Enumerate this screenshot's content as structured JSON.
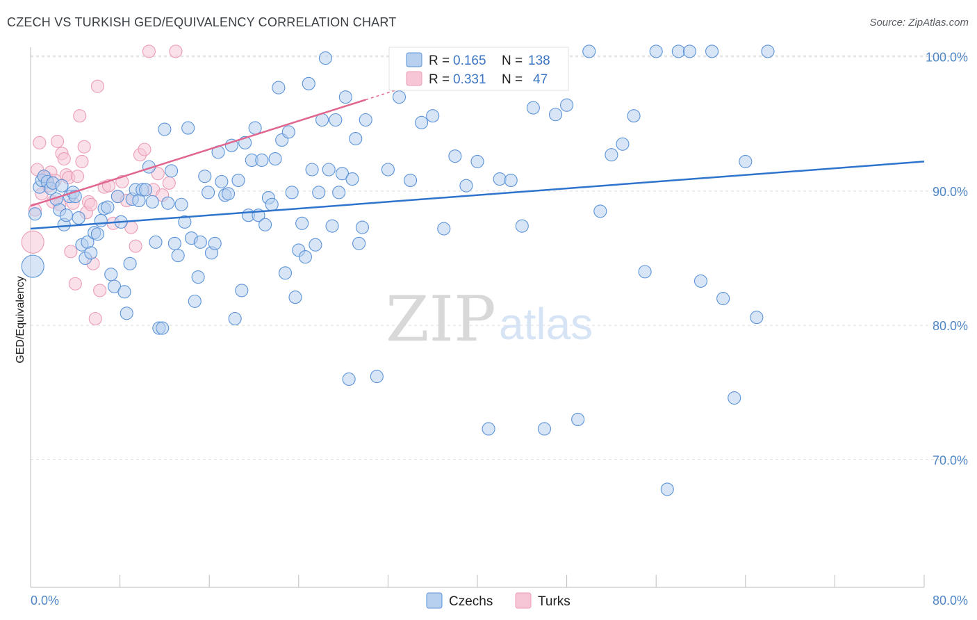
{
  "title": "CZECH VS TURKISH GED/EQUIVALENCY CORRELATION CHART",
  "source": "Source: ZipAtlas.com",
  "watermark": {
    "zip": "ZIP",
    "atlas": "atlas"
  },
  "colors": {
    "czech": "#5b93d8",
    "czech_fill": "#b7d0ef",
    "czech_line": "#2f74cc",
    "turk": "#ec9cb5",
    "turk_fill": "#f6c6d6",
    "turk_line": "#e0668f",
    "tick": "#4f86c6",
    "grid": "#dcdcdc"
  },
  "legend_top": {
    "czech": {
      "r_label": "R = ",
      "r_value": "0.165",
      "n_label": "N = ",
      "n_value": "138"
    },
    "turk": {
      "r_label": "R = ",
      "r_value": "0.331",
      "n_label": "N = ",
      "n_value": "47"
    }
  },
  "legend_bottom": {
    "czech": "Czechs",
    "turk": "Turks"
  },
  "chart_data": {
    "type": "scatter",
    "title": "CZECH VS TURKISH GED/EQUIVALENCY CORRELATION CHART",
    "xlabel": "",
    "ylabel": "GED/Equivalency",
    "xlim": [
      0,
      80
    ],
    "ylim": [
      60.5,
      100.5
    ],
    "x_tick_labels": [
      {
        "value": 0,
        "label": "0.0%"
      },
      {
        "value": 80,
        "label": "80.0%"
      }
    ],
    "y_tick_labels": [
      {
        "value": 100,
        "label": "100.0%"
      },
      {
        "value": 90,
        "label": "90.0%"
      },
      {
        "value": 80,
        "label": "80.0%"
      },
      {
        "value": 70,
        "label": "70.0%"
      }
    ],
    "grid": "horizontal dashed",
    "legend_placement": "top-center and bottom-center",
    "series": [
      {
        "name": "Czechs",
        "r": 0.165,
        "n": 138,
        "trend": {
          "x": [
            0,
            80
          ],
          "y": [
            87.2,
            92.2
          ]
        },
        "points": [
          [
            0.2,
            84.4
          ],
          [
            0.4,
            88.3
          ],
          [
            0.8,
            90.3
          ],
          [
            1.0,
            90.8
          ],
          [
            1.2,
            91.1
          ],
          [
            1.5,
            90.7
          ],
          [
            1.8,
            90.2
          ],
          [
            2.0,
            90.6
          ],
          [
            2.3,
            89.4
          ],
          [
            2.6,
            88.6
          ],
          [
            2.8,
            90.4
          ],
          [
            3.0,
            87.5
          ],
          [
            3.2,
            88.2
          ],
          [
            3.5,
            89.6
          ],
          [
            3.8,
            89.9
          ],
          [
            4.0,
            89.6
          ],
          [
            4.3,
            88.0
          ],
          [
            4.6,
            86.0
          ],
          [
            4.9,
            85.0
          ],
          [
            5.1,
            86.2
          ],
          [
            5.4,
            85.4
          ],
          [
            5.7,
            86.9
          ],
          [
            6.0,
            86.8
          ],
          [
            6.3,
            87.8
          ],
          [
            6.6,
            88.7
          ],
          [
            6.9,
            88.8
          ],
          [
            7.2,
            83.8
          ],
          [
            7.5,
            82.9
          ],
          [
            7.8,
            89.6
          ],
          [
            8.1,
            87.7
          ],
          [
            8.4,
            82.5
          ],
          [
            8.6,
            80.9
          ],
          [
            8.9,
            84.6
          ],
          [
            9.1,
            89.4
          ],
          [
            9.4,
            90.1
          ],
          [
            9.7,
            89.3
          ],
          [
            10.0,
            90.1
          ],
          [
            10.3,
            90.1
          ],
          [
            10.6,
            91.8
          ],
          [
            10.9,
            89.2
          ],
          [
            11.2,
            86.2
          ],
          [
            11.5,
            79.8
          ],
          [
            11.8,
            79.8
          ],
          [
            12.0,
            94.6
          ],
          [
            12.3,
            89.1
          ],
          [
            12.6,
            91.5
          ],
          [
            12.9,
            86.1
          ],
          [
            13.2,
            85.2
          ],
          [
            13.5,
            89.0
          ],
          [
            13.8,
            87.7
          ],
          [
            14.1,
            94.7
          ],
          [
            14.4,
            86.5
          ],
          [
            14.7,
            81.8
          ],
          [
            15.0,
            83.6
          ],
          [
            15.2,
            86.2
          ],
          [
            15.6,
            91.1
          ],
          [
            15.9,
            89.9
          ],
          [
            16.2,
            85.4
          ],
          [
            16.5,
            86.1
          ],
          [
            16.8,
            92.9
          ],
          [
            17.1,
            90.7
          ],
          [
            17.4,
            89.7
          ],
          [
            17.7,
            89.8
          ],
          [
            18.0,
            93.4
          ],
          [
            18.3,
            80.5
          ],
          [
            18.6,
            90.8
          ],
          [
            18.9,
            82.6
          ],
          [
            19.2,
            93.6
          ],
          [
            19.5,
            88.2
          ],
          [
            19.8,
            92.3
          ],
          [
            20.1,
            94.7
          ],
          [
            20.4,
            88.2
          ],
          [
            20.7,
            92.3
          ],
          [
            21.0,
            87.5
          ],
          [
            21.3,
            89.5
          ],
          [
            21.6,
            89.0
          ],
          [
            21.9,
            92.4
          ],
          [
            22.2,
            97.7
          ],
          [
            22.5,
            93.8
          ],
          [
            22.8,
            83.9
          ],
          [
            23.1,
            94.4
          ],
          [
            23.4,
            89.9
          ],
          [
            23.7,
            82.1
          ],
          [
            24.0,
            85.6
          ],
          [
            24.3,
            87.6
          ],
          [
            24.6,
            85.1
          ],
          [
            24.9,
            98.0
          ],
          [
            25.2,
            91.6
          ],
          [
            25.5,
            86.0
          ],
          [
            25.8,
            89.9
          ],
          [
            26.1,
            95.3
          ],
          [
            26.4,
            99.9
          ],
          [
            26.7,
            91.6
          ],
          [
            27.0,
            87.4
          ],
          [
            27.3,
            95.3
          ],
          [
            27.6,
            89.9
          ],
          [
            27.9,
            91.3
          ],
          [
            28.2,
            97.0
          ],
          [
            28.5,
            76.0
          ],
          [
            28.8,
            90.9
          ],
          [
            29.1,
            93.9
          ],
          [
            29.4,
            86.1
          ],
          [
            29.7,
            87.3
          ],
          [
            30.0,
            95.3
          ],
          [
            31.0,
            76.2
          ],
          [
            32.0,
            91.6
          ],
          [
            33.0,
            97.0
          ],
          [
            34.0,
            90.8
          ],
          [
            35.0,
            95.1
          ],
          [
            36.0,
            95.6
          ],
          [
            37.0,
            87.2
          ],
          [
            38.0,
            92.6
          ],
          [
            39.0,
            90.4
          ],
          [
            40.0,
            92.2
          ],
          [
            41.0,
            72.3
          ],
          [
            42.0,
            90.9
          ],
          [
            43.0,
            90.8
          ],
          [
            44.0,
            87.4
          ],
          [
            45.0,
            96.2
          ],
          [
            46.0,
            72.3
          ],
          [
            47.0,
            95.7
          ],
          [
            48.0,
            96.4
          ],
          [
            49.0,
            73.0
          ],
          [
            50.0,
            100.4
          ],
          [
            51.0,
            88.5
          ],
          [
            52.0,
            92.7
          ],
          [
            53.0,
            93.5
          ],
          [
            54.0,
            95.6
          ],
          [
            55.0,
            84.0
          ],
          [
            56.0,
            100.4
          ],
          [
            57.0,
            67.8
          ],
          [
            58.0,
            100.4
          ],
          [
            59.0,
            100.4
          ],
          [
            60.0,
            83.3
          ],
          [
            61.0,
            100.4
          ],
          [
            62.0,
            82.0
          ],
          [
            63.0,
            74.6
          ],
          [
            64.0,
            92.2
          ],
          [
            65.0,
            80.6
          ],
          [
            66.0,
            100.4
          ]
        ]
      },
      {
        "name": "Turks",
        "r": 0.331,
        "n": 47,
        "trend": {
          "x": [
            0,
            30
          ],
          "y": [
            88.9,
            96.8
          ]
        },
        "points": [
          [
            0.2,
            86.2
          ],
          [
            0.4,
            88.6
          ],
          [
            0.6,
            91.6
          ],
          [
            0.8,
            93.6
          ],
          [
            1.0,
            89.8
          ],
          [
            1.2,
            91.1
          ],
          [
            1.4,
            91.0
          ],
          [
            1.6,
            90.4
          ],
          [
            1.8,
            91.4
          ],
          [
            2.0,
            89.2
          ],
          [
            2.2,
            90.8
          ],
          [
            2.4,
            93.7
          ],
          [
            2.6,
            89.0
          ],
          [
            2.8,
            92.8
          ],
          [
            3.0,
            92.4
          ],
          [
            3.2,
            91.2
          ],
          [
            3.4,
            91.0
          ],
          [
            3.6,
            85.5
          ],
          [
            3.8,
            89.1
          ],
          [
            4.0,
            83.1
          ],
          [
            4.2,
            91.1
          ],
          [
            4.4,
            95.6
          ],
          [
            4.6,
            92.2
          ],
          [
            4.8,
            93.3
          ],
          [
            5.0,
            88.4
          ],
          [
            5.2,
            89.2
          ],
          [
            5.4,
            89.0
          ],
          [
            5.6,
            84.6
          ],
          [
            5.8,
            80.5
          ],
          [
            6.0,
            97.8
          ],
          [
            6.2,
            82.6
          ],
          [
            6.6,
            90.3
          ],
          [
            7.0,
            90.4
          ],
          [
            7.4,
            87.6
          ],
          [
            7.8,
            89.6
          ],
          [
            8.2,
            90.7
          ],
          [
            8.6,
            89.3
          ],
          [
            9.0,
            87.3
          ],
          [
            9.4,
            85.9
          ],
          [
            9.8,
            92.7
          ],
          [
            10.2,
            93.1
          ],
          [
            10.6,
            100.4
          ],
          [
            11.0,
            90.1
          ],
          [
            11.4,
            91.3
          ],
          [
            11.8,
            89.7
          ],
          [
            12.4,
            90.6
          ],
          [
            13.0,
            100.4
          ]
        ]
      }
    ]
  }
}
